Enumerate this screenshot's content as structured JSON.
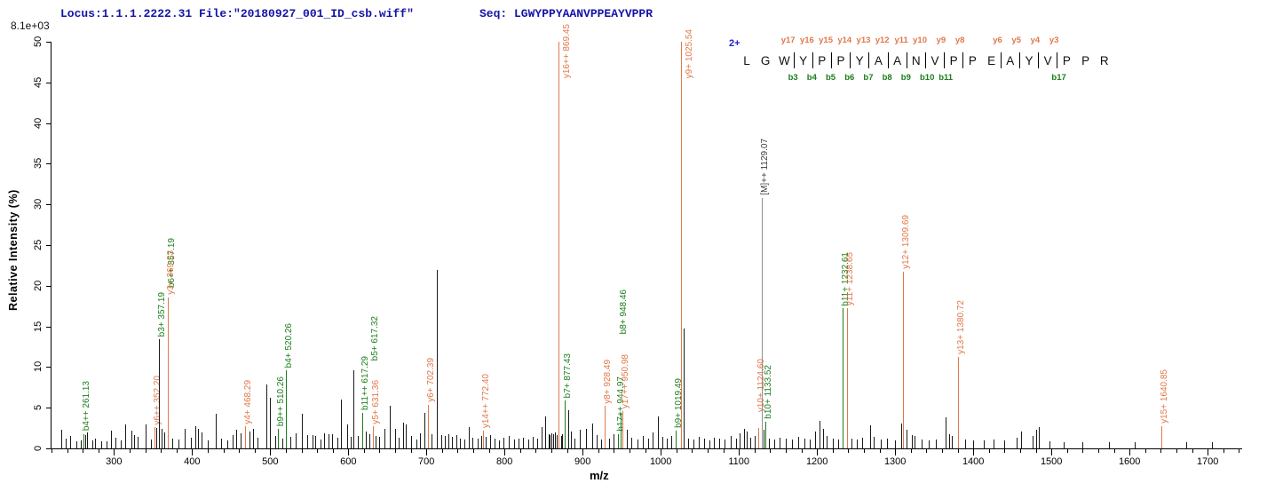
{
  "header": {
    "locus_file": "Locus:1.1.1.2222.31 File:\"20180927_001_ID_csb.wiff\"",
    "seq_label": "Seq: LGWYPPYAANVPPEAYVPPR",
    "scale_note": "8.1e+03"
  },
  "colors": {
    "y_ion": "#e0784a",
    "b_ion": "#1b7d1b",
    "precursor_line": "#8f8f8f",
    "precursor_label": "#3d3d3d",
    "noise": "#1a1a1a",
    "header_text": "#1414a6",
    "charge_text": "#2222cc"
  },
  "axes": {
    "x": {
      "label": "m/z",
      "min": 219,
      "max": 1743,
      "major_ticks": [
        300,
        400,
        500,
        600,
        700,
        800,
        900,
        1000,
        1100,
        1200,
        1300,
        1400,
        1500,
        1600,
        1700
      ],
      "minor_step": 20
    },
    "y": {
      "label": "Relative Intensity (%)",
      "min": 0,
      "max": 50,
      "ticks": [
        0,
        5,
        10,
        15,
        20,
        25,
        30,
        35,
        40,
        45,
        50
      ]
    }
  },
  "sequence_diagram": {
    "charge": "2+",
    "residues": [
      "L",
      "G",
      "W",
      "Y",
      "P",
      "P",
      "Y",
      "A",
      "A",
      "N",
      "V",
      "P",
      "P",
      "E",
      "A",
      "Y",
      "V",
      "P",
      "P",
      "R"
    ],
    "cleavages": [
      {
        "after": 3,
        "y": "y17",
        "b": "b3"
      },
      {
        "after": 4,
        "y": "y16",
        "b": "b4"
      },
      {
        "after": 5,
        "y": "y15",
        "b": "b5"
      },
      {
        "after": 6,
        "y": "y14",
        "b": "b6"
      },
      {
        "after": 7,
        "y": "y13",
        "b": "b7"
      },
      {
        "after": 8,
        "y": "y12",
        "b": "b8"
      },
      {
        "after": 9,
        "y": "y11",
        "b": "b9"
      },
      {
        "after": 10,
        "y": "y10",
        "b": "b10"
      },
      {
        "after": 11,
        "y": "y9",
        "b": "b11"
      },
      {
        "after": 12,
        "y": "y8",
        "b": null
      },
      {
        "after": 14,
        "y": "y6",
        "b": null
      },
      {
        "after": 15,
        "y": "y5",
        "b": null
      },
      {
        "after": 16,
        "y": "y4",
        "b": null
      },
      {
        "after": 17,
        "y": "y3",
        "b": "b17"
      }
    ]
  },
  "chart_data": {
    "type": "bar",
    "subtype": "ms2-centroid-spectrum",
    "title": "",
    "xlabel": "m/z",
    "ylabel": "Relative Intensity (%)",
    "xlim": [
      219,
      1743
    ],
    "ylim": [
      0,
      50
    ],
    "annotated_peaks": [
      {
        "mz": 261.13,
        "intensity_pct": 1.8,
        "ion": "b",
        "label": "b4++ 261.13"
      },
      {
        "mz": 352.2,
        "intensity_pct": 2.6,
        "ion": "y",
        "label": "y6++ 352.20"
      },
      {
        "mz": 357.19,
        "intensity_pct": 13.4,
        "ion": "b",
        "label": "b3+ 357.19",
        "label2": "b6++ 357.19",
        "peak_color": "#1a1a1a"
      },
      {
        "mz": 369.23,
        "intensity_pct": 18.6,
        "ion": "y",
        "label": "y3+ 369.23"
      },
      {
        "mz": 468.29,
        "intensity_pct": 2.7,
        "ion": "y",
        "label": "y4+ 468.29"
      },
      {
        "mz": 510.26,
        "intensity_pct": 2.4,
        "ion": "b",
        "label": "b9++ 510.26"
      },
      {
        "mz": 520.26,
        "intensity_pct": 9.6,
        "ion": "b",
        "label": "b4+ 520.26"
      },
      {
        "mz": 617.29,
        "intensity_pct": 4.4,
        "ion": "b",
        "label": "b11++ 617.29",
        "label2": "b5+ 617.32"
      },
      {
        "mz": 631.36,
        "intensity_pct": 2.7,
        "ion": "y",
        "label": "y5+ 631.36"
      },
      {
        "mz": 702.39,
        "intensity_pct": 5.4,
        "ion": "y",
        "label": "y6+ 702.39"
      },
      {
        "mz": 772.4,
        "intensity_pct": 2.2,
        "ion": "y",
        "label": "y14++ 772.40"
      },
      {
        "mz": 869.45,
        "intensity_pct": 50,
        "ion": "y",
        "label": "y16++ 869.45",
        "label_dx": 6,
        "label_bottom": 88
      },
      {
        "mz": 877.43,
        "intensity_pct": 5.9,
        "ion": "b",
        "label": "b7+ 877.43"
      },
      {
        "mz": 928.49,
        "intensity_pct": 5.2,
        "ion": "y",
        "label": "y8+ 928.49"
      },
      {
        "mz": 944.97,
        "intensity_pct": 1.8,
        "ion": "b",
        "label": "b17++ 944.97"
      },
      {
        "mz": 948.46,
        "intensity_pct": 4.4,
        "ion": "b",
        "label": "b8+ 948.46",
        "label_dy": -85
      },
      {
        "mz": 950.98,
        "intensity_pct": 4.6,
        "ion": "y",
        "label": "y17++ 950.98"
      },
      {
        "mz": 1019.49,
        "intensity_pct": 2.2,
        "ion": "b",
        "label": "b9+ 1019.49"
      },
      {
        "mz": 1025.54,
        "intensity_pct": 50,
        "ion": "y",
        "label": "y9+ 1025.54",
        "label_dx": 6,
        "label_bottom": 88
      },
      {
        "mz": 1124.6,
        "intensity_pct": 2.5,
        "ion": "y",
        "label": "y10+ 1124.60",
        "label_dy": -15
      },
      {
        "mz": 1129.07,
        "intensity_pct": 30.8,
        "ion": "precursor",
        "label": "[M]++ 1129.07"
      },
      {
        "mz": 1133.52,
        "intensity_pct": 3.3,
        "ion": "b",
        "label": "b10+ 1133.52"
      },
      {
        "mz": 1232.61,
        "intensity_pct": 17.2,
        "ion": "b",
        "label": "b11+ 1232.61"
      },
      {
        "mz": 1238.65,
        "intensity_pct": 17.2,
        "ion": "y",
        "label": "y11+ 1238.65"
      },
      {
        "mz": 1309.69,
        "intensity_pct": 21.7,
        "ion": "y",
        "label": "y12+ 1309.69"
      },
      {
        "mz": 1380.72,
        "intensity_pct": 11.3,
        "ion": "y",
        "label": "y13+ 1380.72"
      },
      {
        "mz": 1640.85,
        "intensity_pct": 2.7,
        "ion": "y",
        "label": "y15+ 1640.85"
      }
    ],
    "noise_peaks": [
      [
        233,
        2.3
      ],
      [
        238,
        1.2
      ],
      [
        244,
        1.5
      ],
      [
        252,
        0.9
      ],
      [
        258,
        1.0
      ],
      [
        263,
        1.6
      ],
      [
        266,
        2.0
      ],
      [
        272,
        1.0
      ],
      [
        276,
        1.2
      ],
      [
        284,
        0.9
      ],
      [
        290,
        0.9
      ],
      [
        296,
        2.2
      ],
      [
        302,
        1.3
      ],
      [
        309,
        1.0
      ],
      [
        314,
        3.0
      ],
      [
        322,
        2.2
      ],
      [
        326,
        1.6
      ],
      [
        330,
        1.4
      ],
      [
        341,
        2.9
      ],
      [
        347,
        1.1
      ],
      [
        354,
        2.5
      ],
      [
        361,
        2.4
      ],
      [
        364,
        2.0
      ],
      [
        375,
        1.2
      ],
      [
        383,
        1.1
      ],
      [
        390,
        2.4
      ],
      [
        398,
        1.3
      ],
      [
        404,
        2.7
      ],
      [
        408,
        2.4
      ],
      [
        412,
        2.0
      ],
      [
        420,
        1.0
      ],
      [
        430,
        4.3
      ],
      [
        437,
        1.2
      ],
      [
        445,
        1.0
      ],
      [
        452,
        1.6
      ],
      [
        457,
        2.3
      ],
      [
        462,
        1.9
      ],
      [
        473,
        2.1
      ],
      [
        478,
        2.4
      ],
      [
        484,
        1.3
      ],
      [
        495,
        7.9
      ],
      [
        500,
        6.2
      ],
      [
        506,
        1.5
      ],
      [
        515,
        1.2
      ],
      [
        526,
        1.4
      ],
      [
        533,
        1.9
      ],
      [
        540,
        4.3
      ],
      [
        547,
        1.6
      ],
      [
        554,
        1.6
      ],
      [
        558,
        1.5
      ],
      [
        564,
        1.1
      ],
      [
        569,
        1.9
      ],
      [
        575,
        1.8
      ],
      [
        579,
        1.7
      ],
      [
        586,
        1.3
      ],
      [
        590,
        6.0
      ],
      [
        598,
        2.9
      ],
      [
        603,
        1.4
      ],
      [
        607,
        9.6
      ],
      [
        612,
        1.5
      ],
      [
        622,
        2.1
      ],
      [
        627,
        1.8
      ],
      [
        635,
        1.5
      ],
      [
        640,
        1.4
      ],
      [
        646,
        2.4
      ],
      [
        653,
        5.3
      ],
      [
        660,
        2.4
      ],
      [
        665,
        1.3
      ],
      [
        670,
        3.2
      ],
      [
        674,
        2.9
      ],
      [
        680,
        1.5
      ],
      [
        687,
        1.1
      ],
      [
        692,
        1.9
      ],
      [
        697,
        4.4
      ],
      [
        706,
        1.7
      ],
      [
        713,
        22.0
      ],
      [
        719,
        1.6
      ],
      [
        724,
        1.5
      ],
      [
        728,
        1.8
      ],
      [
        733,
        1.4
      ],
      [
        738,
        1.6
      ],
      [
        743,
        1.2
      ],
      [
        748,
        1.1
      ],
      [
        754,
        2.6
      ],
      [
        759,
        1.3
      ],
      [
        766,
        1.2
      ],
      [
        770,
        1.5
      ],
      [
        776,
        1.4
      ],
      [
        781,
        1.6
      ],
      [
        787,
        1.2
      ],
      [
        793,
        1.0
      ],
      [
        799,
        1.3
      ],
      [
        805,
        1.5
      ],
      [
        812,
        1.1
      ],
      [
        818,
        1.2
      ],
      [
        823,
        1.3
      ],
      [
        830,
        1.1
      ],
      [
        836,
        1.4
      ],
      [
        842,
        1.2
      ],
      [
        847,
        2.6
      ],
      [
        852,
        3.9
      ],
      [
        856,
        1.8
      ],
      [
        858,
        1.6
      ],
      [
        860,
        1.9
      ],
      [
        862,
        1.8
      ],
      [
        865,
        2.0
      ],
      [
        867,
        1.6
      ],
      [
        872,
        1.5
      ],
      [
        874,
        1.7
      ],
      [
        881,
        4.7
      ],
      [
        885,
        2.1
      ],
      [
        890,
        1.2
      ],
      [
        896,
        2.3
      ],
      [
        904,
        2.4
      ],
      [
        912,
        3.1
      ],
      [
        918,
        1.6
      ],
      [
        924,
        1.1
      ],
      [
        934,
        1.2
      ],
      [
        940,
        1.7
      ],
      [
        956,
        2.3
      ],
      [
        962,
        1.3
      ],
      [
        970,
        1.1
      ],
      [
        977,
        1.5
      ],
      [
        984,
        1.2
      ],
      [
        990,
        2.0
      ],
      [
        996,
        3.9
      ],
      [
        1002,
        1.4
      ],
      [
        1008,
        1.2
      ],
      [
        1013,
        1.5
      ],
      [
        1029.6,
        14.7
      ],
      [
        1035,
        1.2
      ],
      [
        1042,
        1.1
      ],
      [
        1048,
        1.4
      ],
      [
        1055,
        1.2
      ],
      [
        1062,
        1.0
      ],
      [
        1068,
        1.3
      ],
      [
        1075,
        1.2
      ],
      [
        1082,
        1.1
      ],
      [
        1090,
        1.5
      ],
      [
        1096,
        1.2
      ],
      [
        1101,
        1.9
      ],
      [
        1106,
        2.4
      ],
      [
        1110,
        2.1
      ],
      [
        1115,
        1.3
      ],
      [
        1120,
        1.5
      ],
      [
        1131,
        2.3
      ],
      [
        1138,
        1.2
      ],
      [
        1145,
        1.1
      ],
      [
        1152,
        1.3
      ],
      [
        1160,
        1.2
      ],
      [
        1168,
        1.1
      ],
      [
        1176,
        1.4
      ],
      [
        1184,
        1.2
      ],
      [
        1191,
        1.1
      ],
      [
        1197,
        2.1
      ],
      [
        1203,
        3.4
      ],
      [
        1208,
        2.4
      ],
      [
        1212,
        1.5
      ],
      [
        1220,
        1.2
      ],
      [
        1227,
        1.1
      ],
      [
        1244,
        1.2
      ],
      [
        1251,
        1.1
      ],
      [
        1258,
        1.3
      ],
      [
        1268,
        2.8
      ],
      [
        1272,
        1.4
      ],
      [
        1281,
        1.1
      ],
      [
        1290,
        1.2
      ],
      [
        1300,
        1.0
      ],
      [
        1308,
        3.1
      ],
      [
        1314,
        2.3
      ],
      [
        1321,
        1.6
      ],
      [
        1325,
        1.5
      ],
      [
        1334,
        1.1
      ],
      [
        1343,
        1.0
      ],
      [
        1352,
        1.1
      ],
      [
        1365,
        3.8
      ],
      [
        1369,
        1.7
      ],
      [
        1373,
        1.5
      ],
      [
        1390,
        1.1
      ],
      [
        1400,
        1.0
      ],
      [
        1413,
        1.0
      ],
      [
        1426,
        1.1
      ],
      [
        1440,
        1.0
      ],
      [
        1455,
        1.3
      ],
      [
        1461,
        2.1
      ],
      [
        1476,
        1.5
      ],
      [
        1480,
        2.3
      ],
      [
        1484,
        2.6
      ],
      [
        1497,
        0.9
      ],
      [
        1516,
        0.8
      ],
      [
        1540,
        0.8
      ],
      [
        1574,
        0.8
      ],
      [
        1607,
        0.8
      ],
      [
        1672,
        0.8
      ],
      [
        1705,
        0.8
      ]
    ]
  }
}
